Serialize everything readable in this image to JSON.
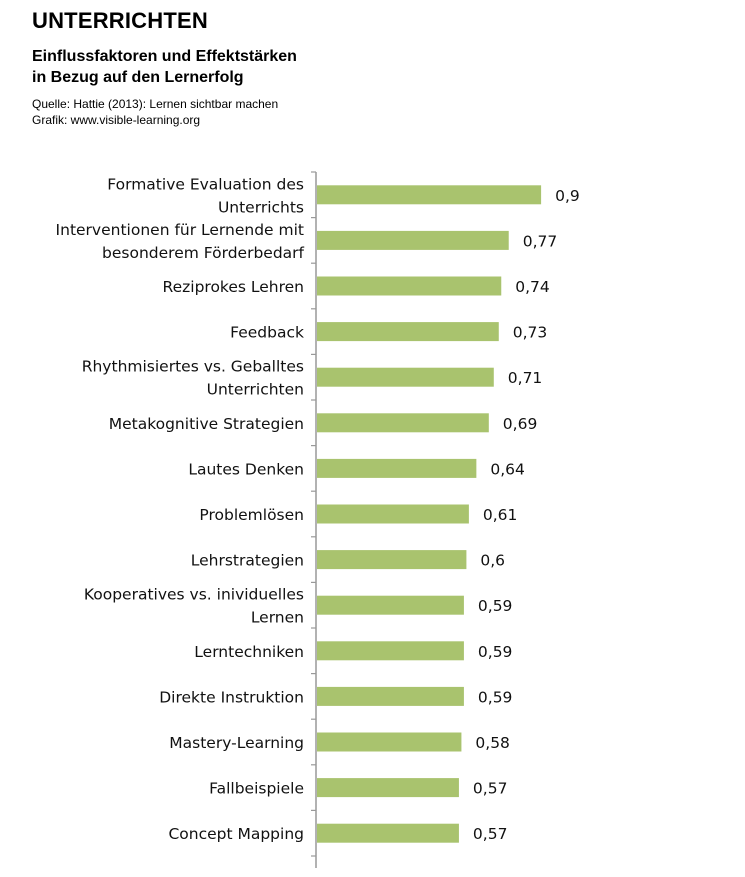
{
  "header": {
    "title": "UNTERRICHTEN",
    "subtitle_line1": "Einflussfaktoren und Effektstärken",
    "subtitle_line2": "in Bezug auf den Lernerfolg",
    "source_line1": "Quelle: Hattie (2013): Lernen sichtbar machen",
    "source_line2": "Grafik: www.visible-learning.org"
  },
  "chart_data": {
    "type": "bar",
    "orientation": "horizontal",
    "bar_color": "#a9c36e",
    "axis_color": "#999999",
    "grid": false,
    "legend": "none",
    "xlim": [
      0,
      1
    ],
    "categories": [
      [
        "Formative Evaluation des",
        "Unterrichts"
      ],
      [
        "Interventionen für Lernende mit",
        "besonderem Förderbedarf"
      ],
      [
        "Reziprokes Lehren"
      ],
      [
        "Feedback"
      ],
      [
        "Rhythmisiertes vs. Geballtes",
        "Unterrichten"
      ],
      [
        "Metakognitive Strategien"
      ],
      [
        "Lautes Denken"
      ],
      [
        "Problemlösen"
      ],
      [
        "Lehrstrategien"
      ],
      [
        "Kooperatives vs. inividuelles",
        "Lernen"
      ],
      [
        "Lerntechniken"
      ],
      [
        "Direkte Instruktion"
      ],
      [
        "Mastery-Learning"
      ],
      [
        "Fallbeispiele"
      ],
      [
        "Concept Mapping"
      ]
    ],
    "values": [
      0.9,
      0.77,
      0.74,
      0.73,
      0.71,
      0.69,
      0.64,
      0.61,
      0.6,
      0.59,
      0.59,
      0.59,
      0.58,
      0.57,
      0.57
    ],
    "value_labels": [
      "0,9",
      "0,77",
      "0,74",
      "0,73",
      "0,71",
      "0,69",
      "0,64",
      "0,61",
      "0,6",
      "0,59",
      "0,59",
      "0,59",
      "0,58",
      "0,57",
      "0,57"
    ]
  }
}
